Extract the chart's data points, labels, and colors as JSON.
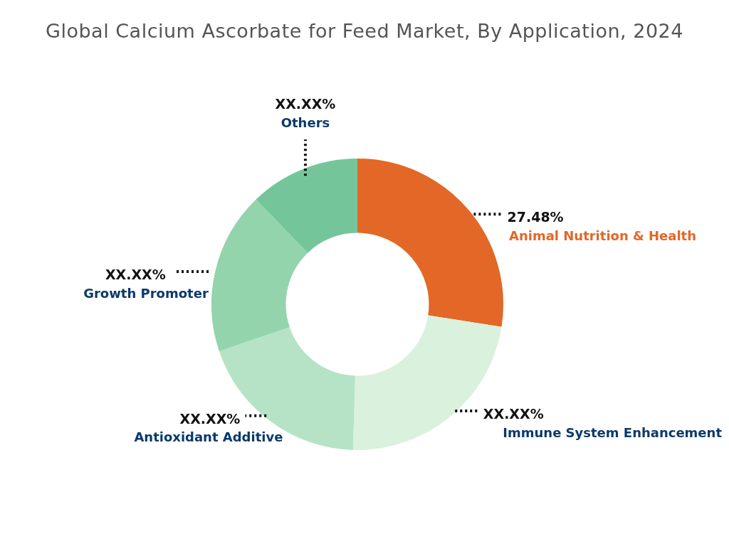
{
  "chart_data": {
    "type": "donut",
    "title": "Global Calcium Ascorbate for Feed Market, By Application, 2024",
    "categories": [
      "Animal Nutrition & Health",
      "Immune System Enhancement",
      "Antioxidant Additive",
      "Growth Promoter",
      "Others"
    ],
    "values": [
      27.48,
      23.0,
      19.3,
      18.0,
      12.22
    ],
    "colors": [
      "#e36726",
      "#daf1dd",
      "#b6e3c6",
      "#93d4ad",
      "#74c69a"
    ],
    "value_labels": [
      "27.48%",
      "XX.XX%",
      "XX.XX%",
      "XX.XX%",
      "XX.XX%"
    ],
    "legend": false
  }
}
